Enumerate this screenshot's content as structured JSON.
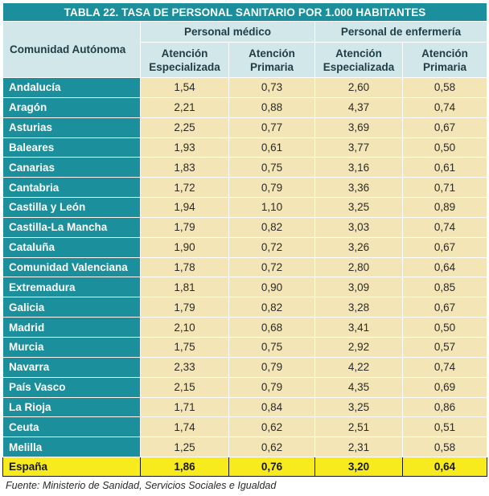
{
  "title": "TABLA 22. TASA DE PERSONAL SANITARIO POR 1.000 HABITANTES",
  "headers": {
    "region": "Comunidad Autónoma",
    "group1": "Personal médico",
    "group2": "Personal de enfermería",
    "sub1_line1": "Atención",
    "sub1_line2": "Especializada",
    "sub2_line1": "Atención",
    "sub2_line2": "Primaria",
    "sub3_line1": "Atención",
    "sub3_line2": "Especializada",
    "sub4_line1": "Atención",
    "sub4_line2": "Primaria"
  },
  "rows": [
    {
      "name": "Andalucía",
      "v": [
        "1,54",
        "0,73",
        "2,60",
        "0,58"
      ]
    },
    {
      "name": "Aragón",
      "v": [
        "2,21",
        "0,88",
        "4,37",
        "0,74"
      ]
    },
    {
      "name": "Asturias",
      "v": [
        "2,25",
        "0,77",
        "3,69",
        "0,67"
      ]
    },
    {
      "name": "Baleares",
      "v": [
        "1,93",
        "0,61",
        "3,77",
        "0,50"
      ]
    },
    {
      "name": "Canarias",
      "v": [
        "1,83",
        "0,75",
        "3,16",
        "0,61"
      ]
    },
    {
      "name": "Cantabria",
      "v": [
        "1,72",
        "0,79",
        "3,36",
        "0,71"
      ]
    },
    {
      "name": "Castilla y León",
      "v": [
        "1,94",
        "1,10",
        "3,25",
        "0,89"
      ]
    },
    {
      "name": "Castilla-La Mancha",
      "v": [
        "1,79",
        "0,82",
        "3,03",
        "0,74"
      ]
    },
    {
      "name": "Cataluña",
      "v": [
        "1,90",
        "0,72",
        "3,26",
        "0,67"
      ]
    },
    {
      "name": "Comunidad Valenciana",
      "v": [
        "1,78",
        "0,72",
        "2,80",
        "0,64"
      ]
    },
    {
      "name": "Extremadura",
      "v": [
        "1,81",
        "0,90",
        "3,09",
        "0,85"
      ]
    },
    {
      "name": "Galicia",
      "v": [
        "1,79",
        "0,82",
        "3,28",
        "0,67"
      ]
    },
    {
      "name": "Madrid",
      "v": [
        "2,10",
        "0,68",
        "3,41",
        "0,50"
      ]
    },
    {
      "name": "Murcia",
      "v": [
        "1,75",
        "0,75",
        "2,92",
        "0,57"
      ]
    },
    {
      "name": "Navarra",
      "v": [
        "2,33",
        "0,79",
        "4,22",
        "0,74"
      ]
    },
    {
      "name": "País Vasco",
      "v": [
        "2,15",
        "0,79",
        "4,35",
        "0,69"
      ]
    },
    {
      "name": "La Rioja",
      "v": [
        "1,71",
        "0,84",
        "3,25",
        "0,86"
      ]
    },
    {
      "name": "Ceuta",
      "v": [
        "1,74",
        "0,62",
        "2,51",
        "0,51"
      ]
    },
    {
      "name": "Melilla",
      "v": [
        "1,25",
        "0,62",
        "2,31",
        "0,58"
      ]
    }
  ],
  "total": {
    "name": "España",
    "v": [
      "1,86",
      "0,76",
      "3,20",
      "0,64"
    ]
  },
  "source": "Fuente: Ministerio de Sanidad, Servicios Sociales e Igualdad",
  "colors": {
    "teal": "#1b8f9c",
    "header_bg": "#d2e7ea",
    "cell_bg": "#f4e5b6",
    "total_bg": "#f7ea1d"
  }
}
